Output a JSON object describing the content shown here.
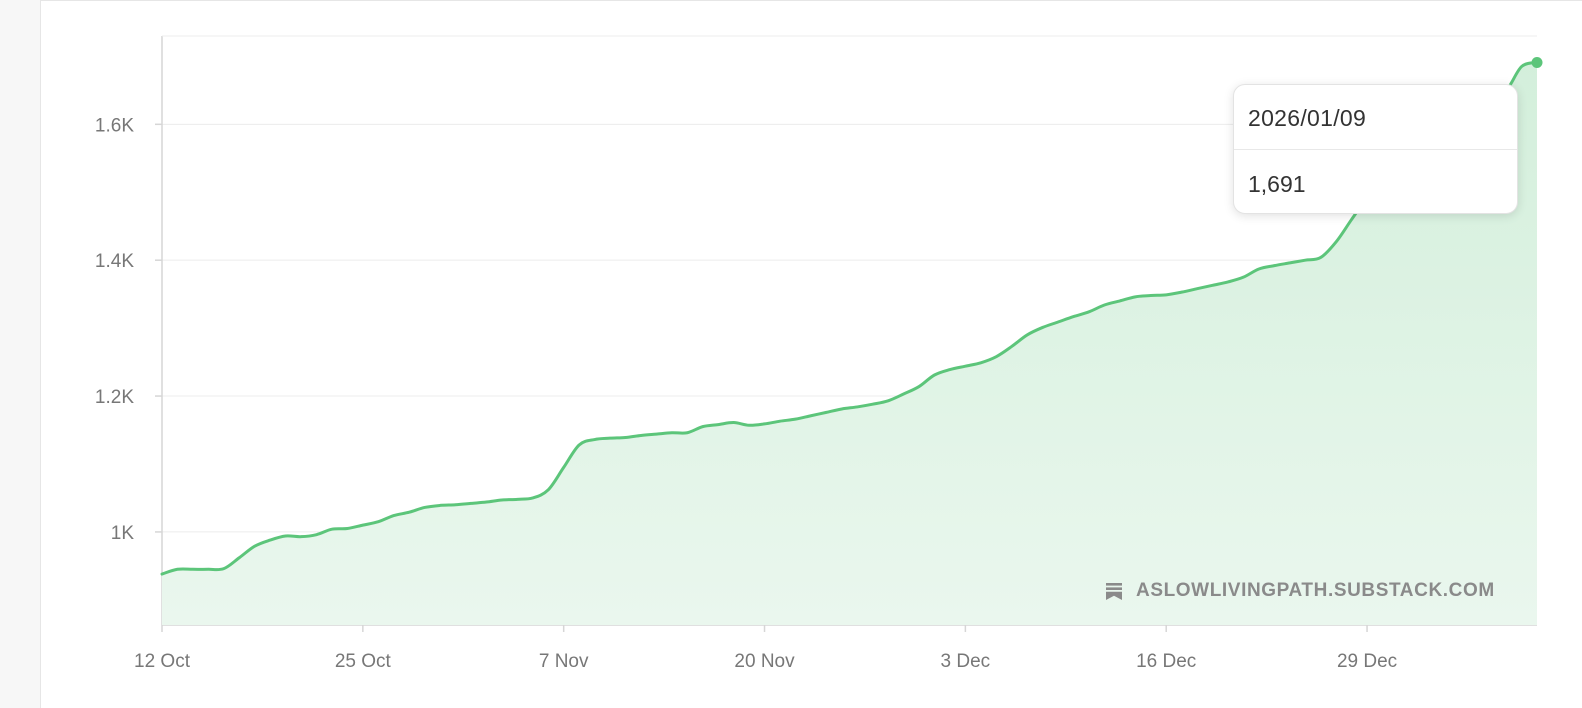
{
  "colors": {
    "line": "#5cc57a",
    "fill_top": "#d3efdb",
    "fill_bottom": "#eaf7ee",
    "grid": "#ececec",
    "axis": "#d6d6d6",
    "tick_text": "#777777"
  },
  "tooltip": {
    "date": "2026/01/09",
    "value": "1,691"
  },
  "watermark": {
    "icon": "substack-logo-icon",
    "text": "ASLOWLIVINGPATH.SUBSTACK.COM"
  },
  "chart_data": {
    "type": "area",
    "title": "",
    "xlabel": "",
    "ylabel": "",
    "x_start": "2025-10-12",
    "x_end": "2026-01-09",
    "x_tick_labels": [
      "12 Oct",
      "25 Oct",
      "7 Nov",
      "20 Nov",
      "3 Dec",
      "16 Dec",
      "29 Dec"
    ],
    "y_tick_values": [
      1000,
      1200,
      1400,
      1600
    ],
    "y_tick_labels": [
      "1K",
      "1.2K",
      "1.4K",
      "1.6K"
    ],
    "ylim": [
      863,
      1730
    ],
    "grid": true,
    "series": [
      {
        "x": [
          "2025-10-12",
          "2025-10-13",
          "2025-10-14",
          "2025-10-15",
          "2025-10-16",
          "2025-10-17",
          "2025-10-18",
          "2025-10-19",
          "2025-10-20",
          "2025-10-21",
          "2025-10-22",
          "2025-10-23",
          "2025-10-24",
          "2025-10-25",
          "2025-10-26",
          "2025-10-27",
          "2025-10-28",
          "2025-10-29",
          "2025-10-30",
          "2025-10-31",
          "2025-11-01",
          "2025-11-02",
          "2025-11-03",
          "2025-11-04",
          "2025-11-05",
          "2025-11-06",
          "2025-11-07",
          "2025-11-08",
          "2025-11-09",
          "2025-11-10",
          "2025-11-11",
          "2025-11-12",
          "2025-11-13",
          "2025-11-14",
          "2025-11-15",
          "2025-11-16",
          "2025-11-17",
          "2025-11-18",
          "2025-11-19",
          "2025-11-20",
          "2025-11-21",
          "2025-11-22",
          "2025-11-23",
          "2025-11-24",
          "2025-11-25",
          "2025-11-26",
          "2025-11-27",
          "2025-11-28",
          "2025-11-29",
          "2025-11-30",
          "2025-12-01",
          "2025-12-02",
          "2025-12-03",
          "2025-12-04",
          "2025-12-05",
          "2025-12-06",
          "2025-12-07",
          "2025-12-08",
          "2025-12-09",
          "2025-12-10",
          "2025-12-11",
          "2025-12-12",
          "2025-12-13",
          "2025-12-14",
          "2025-12-15",
          "2025-12-16",
          "2025-12-17",
          "2025-12-18",
          "2025-12-19",
          "2025-12-20",
          "2025-12-21",
          "2025-12-22",
          "2025-12-23",
          "2025-12-24",
          "2025-12-25",
          "2025-12-26",
          "2025-12-27",
          "2025-12-28",
          "2025-12-29",
          "2025-12-30",
          "2025-12-31",
          "2026-01-01",
          "2026-01-02",
          "2026-01-03",
          "2026-01-04",
          "2026-01-05",
          "2026-01-06",
          "2026-01-07",
          "2026-01-08",
          "2026-01-09"
        ],
        "values": [
          938,
          945,
          945,
          945,
          946,
          962,
          979,
          988,
          994,
          993,
          996,
          1004,
          1005,
          1010,
          1015,
          1024,
          1029,
          1036,
          1039,
          1040,
          1042,
          1044,
          1047,
          1048,
          1050,
          1062,
          1095,
          1128,
          1136,
          1138,
          1139,
          1142,
          1144,
          1146,
          1146,
          1155,
          1158,
          1161,
          1157,
          1159,
          1163,
          1166,
          1171,
          1176,
          1181,
          1184,
          1188,
          1193,
          1203,
          1214,
          1231,
          1239,
          1244,
          1249,
          1258,
          1273,
          1290,
          1301,
          1309,
          1317,
          1324,
          1334,
          1340,
          1346,
          1348,
          1349,
          1353,
          1358,
          1363,
          1368,
          1375,
          1387,
          1392,
          1396,
          1400,
          1404,
          1427,
          1460,
          1492,
          1519,
          1546,
          1569,
          1594,
          1613,
          1630,
          1637,
          1645,
          1650,
          1685,
          1691
        ]
      }
    ]
  }
}
